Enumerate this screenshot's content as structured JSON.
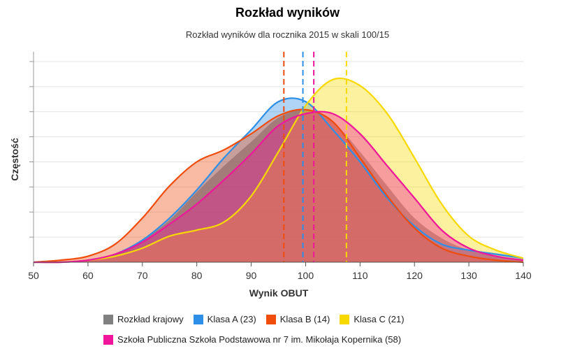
{
  "chart_data": {
    "type": "area",
    "title": "Rozkład wyników",
    "subtitle": "Rozkład wyników dla rocznika 2015 w skali 100/15",
    "xlabel": "Wynik OBUT",
    "ylabel": "Częstość",
    "xlim": [
      50,
      140
    ],
    "ylim": [
      0,
      1
    ],
    "x_ticks": [
      50,
      60,
      70,
      80,
      90,
      100,
      110,
      120,
      130,
      140
    ],
    "grid": true,
    "legend_position": "bottom",
    "x": [
      50,
      55,
      60,
      65,
      70,
      75,
      80,
      85,
      90,
      95,
      100,
      105,
      110,
      115,
      120,
      125,
      130,
      135,
      140
    ],
    "series": [
      {
        "name": "Rozkład krajowy",
        "color": "#808080",
        "values": [
          0.0,
          0.0,
          0.01,
          0.04,
          0.11,
          0.21,
          0.35,
          0.48,
          0.6,
          0.72,
          0.76,
          0.7,
          0.55,
          0.38,
          0.22,
          0.12,
          0.06,
          0.03,
          0.01
        ]
      },
      {
        "name": "Klasa A (23)",
        "color": "#2e8fe8",
        "values": [
          0.0,
          0.0,
          0.01,
          0.04,
          0.11,
          0.22,
          0.36,
          0.52,
          0.66,
          0.8,
          0.8,
          0.66,
          0.5,
          0.32,
          0.18,
          0.09,
          0.06,
          0.04,
          0.02
        ]
      },
      {
        "name": "Klasa B (14)",
        "color": "#f04c0c",
        "values": [
          0.0,
          0.01,
          0.03,
          0.09,
          0.22,
          0.38,
          0.5,
          0.56,
          0.64,
          0.73,
          0.76,
          0.7,
          0.52,
          0.33,
          0.17,
          0.07,
          0.03,
          0.01,
          0.0
        ]
      },
      {
        "name": "Klasa C (21)",
        "color": "#f7d900",
        "values": [
          0.0,
          0.0,
          0.01,
          0.03,
          0.07,
          0.13,
          0.16,
          0.2,
          0.33,
          0.55,
          0.78,
          0.91,
          0.88,
          0.74,
          0.52,
          0.29,
          0.13,
          0.06,
          0.02
        ]
      },
      {
        "name": "Szkoła Publiczna Szkoła Podstawowa nr 7 im. Mikołaja Kopernika (58)",
        "color": "#f0159a",
        "values": [
          0.0,
          0.0,
          0.01,
          0.04,
          0.1,
          0.19,
          0.29,
          0.41,
          0.54,
          0.68,
          0.74,
          0.74,
          0.64,
          0.48,
          0.32,
          0.16,
          0.07,
          0.03,
          0.01
        ]
      }
    ],
    "vertical_lines": [
      {
        "x": 96.0,
        "color": "#f04c0c"
      },
      {
        "x": 99.5,
        "color": "#2e8fe8"
      },
      {
        "x": 101.5,
        "color": "#f0159a"
      },
      {
        "x": 107.5,
        "color": "#f7d900"
      }
    ]
  }
}
